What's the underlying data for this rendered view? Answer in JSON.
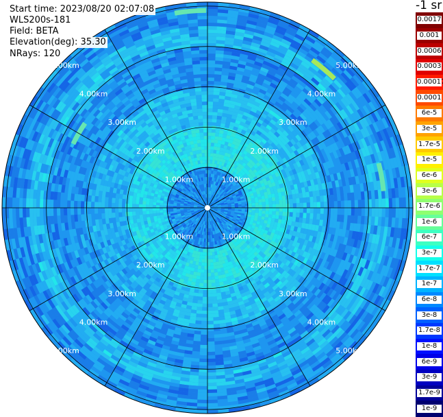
{
  "info": {
    "start_time": "Start time: 2023/08/20 02:07:08",
    "instrument": "WLS200s-181",
    "field": "Field: BETA",
    "elevation": "Elevation(deg): 35.30",
    "nrays": "NRays: 120"
  },
  "colorbar": {
    "unit": "-1 sr",
    "labels": [
      "0.0017",
      "0.001",
      "0.0006",
      "0.0003",
      "0.00017",
      "0.0001",
      "6e-5",
      "3e-5",
      "1.7e-5",
      "1e-5",
      "6e-6",
      "3e-6",
      "1.7e-6",
      "1e-6",
      "6e-7",
      "3e-7",
      "1.7e-7",
      "1e-7",
      "6e-8",
      "3e-8",
      "1.7e-8",
      "1e-8",
      "6e-9",
      "3e-9",
      "1.7e-9",
      "1e-9"
    ],
    "colors": [
      "#800000",
      "#9a0000",
      "#bd0000",
      "#e00000",
      "#ff1a00",
      "#ff4a00",
      "#ff7a00",
      "#ffa200",
      "#ffca00",
      "#fff000",
      "#e0ff1f",
      "#b8ff48",
      "#8fff70",
      "#66ff99",
      "#3dffc2",
      "#14ffea",
      "#00e0ff",
      "#00b4ff",
      "#0088ff",
      "#0060ff",
      "#0038ff",
      "#0010ff",
      "#0000e8",
      "#0000c0",
      "#000098",
      "#000070"
    ]
  },
  "chart_data": {
    "type": "heatmap",
    "title": "",
    "field": "BETA",
    "rays": 120,
    "elevation_deg": 35.3,
    "range_rings_km": [
      1.0,
      2.0,
      3.0,
      4.0,
      5.0
    ],
    "ring_labels": [
      "1.00km",
      "2.00km",
      "3.00km",
      "4.00km",
      "5.00km"
    ],
    "spoke_angles_deg": [
      0,
      30,
      60,
      90,
      120,
      150,
      180,
      210,
      240,
      270,
      300,
      330
    ],
    "max_range_km": 5.1,
    "dominant_values_by_range": [
      {
        "range_km": [
          0.0,
          1.0
        ],
        "value": "1e-7"
      },
      {
        "range_km": [
          1.0,
          2.0
        ],
        "value": "6e-7"
      },
      {
        "range_km": [
          2.0,
          3.0
        ],
        "value": "3e-7"
      },
      {
        "range_km": [
          3.0,
          4.0
        ],
        "value": "1e-7"
      },
      {
        "range_km": [
          4.0,
          4.5
        ],
        "value": "3e-7"
      },
      {
        "range_km": [
          4.5,
          5.1
        ],
        "value": "1e-7"
      }
    ]
  }
}
